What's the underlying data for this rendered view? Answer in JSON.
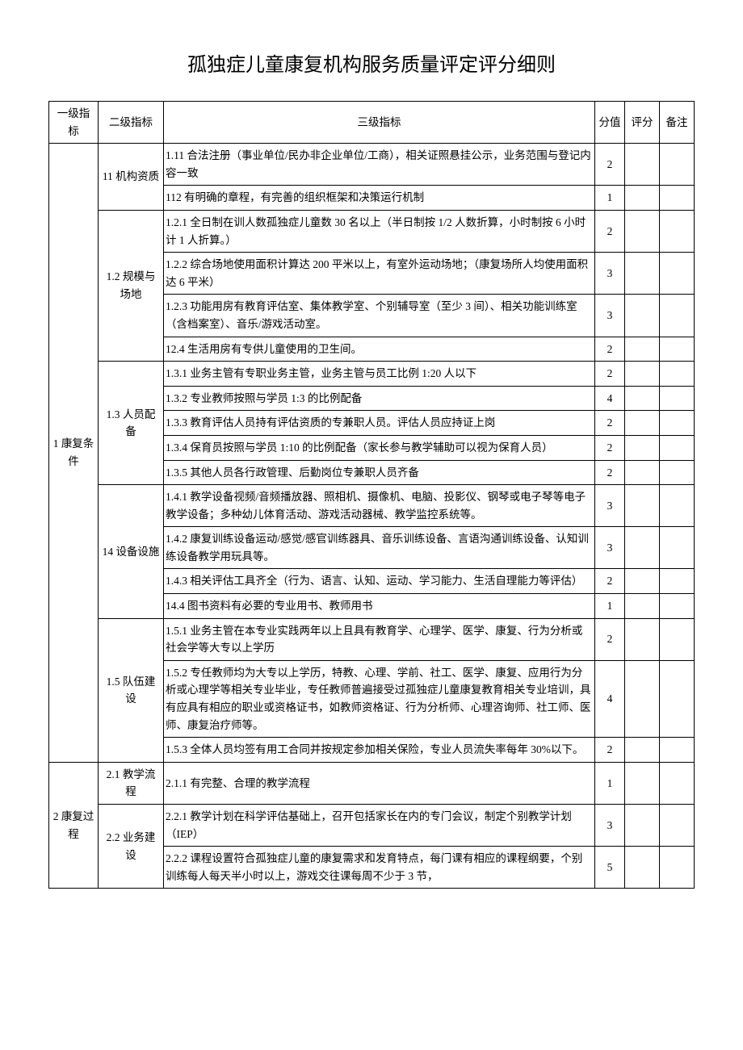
{
  "title": "孤独症儿童康复机构服务质量评定评分细则",
  "headers": {
    "l1": "一级指标",
    "l2": "二级指标",
    "l3": "三级指标",
    "score": "分值",
    "rate": "评分",
    "note": "备注"
  },
  "l1": {
    "s1": "1 康复条件",
    "s2": "2 康复过程"
  },
  "l2": {
    "s11": "11 机构资质",
    "s12": "1.2 规模与场地",
    "s13": "1.3 人员配备",
    "s14": "14 设备设施",
    "s15": "1.5 队伍建设",
    "s21": "2.1 教学流程",
    "s22": "2.2 业务建设"
  },
  "rows": {
    "r111": {
      "l3": "1.11 合法注册（事业单位/民办非企业单位/工商），相关证照悬挂公示，业务范围与登记内容一致",
      "score": "2"
    },
    "r112": {
      "l3": "112 有明确的章程，有完善的组织框架和决策运行机制",
      "score": "1"
    },
    "r121": {
      "l3": "1.2.1 全日制在训人数孤独症儿童数 30 名以上（半日制按 1/2 人数折算，小时制按 6 小时计 1 人折算。）",
      "score": "2"
    },
    "r122": {
      "l3": "1.2.2 综合场地使用面积计算达 200 平米以上，有室外运动场地；（康复场所人均使用面积达 6 平米）",
      "score": "3"
    },
    "r123": {
      "l3": "1.2.3 功能用房有教育评估室、集体教学室、个别辅导室（至少 3 间）、相关功能训练室（含档案室）、音乐/游戏活动室。",
      "score": "3"
    },
    "r124": {
      "l3": "12.4 生活用房有专供儿童使用的卫生间。",
      "score": "2"
    },
    "r131": {
      "l3": "1.3.1 业务主管有专职业务主管，业务主管与员工比例 1:20 人以下",
      "score": "2"
    },
    "r132": {
      "l3": "1.3.2 专业教师按照与学员 1:3 的比例配备",
      "score": "4"
    },
    "r133": {
      "l3": "1.3.3 教育评估人员持有评估资质的专兼职人员。评估人员应持证上岗",
      "score": "2"
    },
    "r134": {
      "l3": "1.3.4 保育员按照与学员 1:10 的比例配备（家长参与教学辅助可以视为保育人员）",
      "score": "2"
    },
    "r135": {
      "l3": "1.3.5 其他人员各行政管理、后勤岗位专兼职人员齐备",
      "score": "2"
    },
    "r141": {
      "l3": "1.4.1 教学设备视频/音频播放器、照相机、摄像机、电脑、投影仪、钢琴或电子琴等电子教学设备；多种幼儿体育活动、游戏活动器械、教学监控系统等。",
      "score": "3"
    },
    "r142": {
      "l3": "1.4.2 康复训练设备运动/感觉/感官训练器具、音乐训练设备、言语沟通训练设备、认知训练设备教学用玩具等。",
      "score": "3"
    },
    "r143": {
      "l3": "1.4.3 相关评估工具齐全（行为、语言、认知、运动、学习能力、生活自理能力等评估）",
      "score": "2"
    },
    "r144": {
      "l3": "14.4 图书资料有必要的专业用书、教师用书",
      "score": "1"
    },
    "r151": {
      "l3": "1.5.1 业务主管在本专业实践两年以上且具有教育学、心理学、医学、康复、行为分析或社会学等大专以上学历",
      "score": "2"
    },
    "r152": {
      "l3": "1.5.2 专任教师均为大专以上学历，特教、心理、学前、社工、医学、康复、应用行为分析或心理学等相关专业毕业，专任教师普遍接受过孤独症儿童康复教育相关专业培训，具有应具有相应的职业或资格证书，如教师资格证、行为分析师、心理咨询师、社工师、医师、康复治疗师等。",
      "score": "4"
    },
    "r153": {
      "l3": "1.5.3 全体人员均签有用工合同并按规定参加相关保险，专业人员流失率每年 30%以下。",
      "score": "2"
    },
    "r211": {
      "l3": "2.1.1 有完整、合理的教学流程",
      "score": "1"
    },
    "r221": {
      "l3": "2.2.1 教学计划在科学评估基础上，召开包括家长在内的专门会议，制定个别教学计划（IEP）",
      "score": "3"
    },
    "r222": {
      "l3": "2.2.2 课程设置符合孤独症儿童的康复需求和发育特点，每门课有相应的课程纲要，个别训练每人每天半小时以上，游戏交往课每周不少于 3 节，",
      "score": "5"
    }
  }
}
